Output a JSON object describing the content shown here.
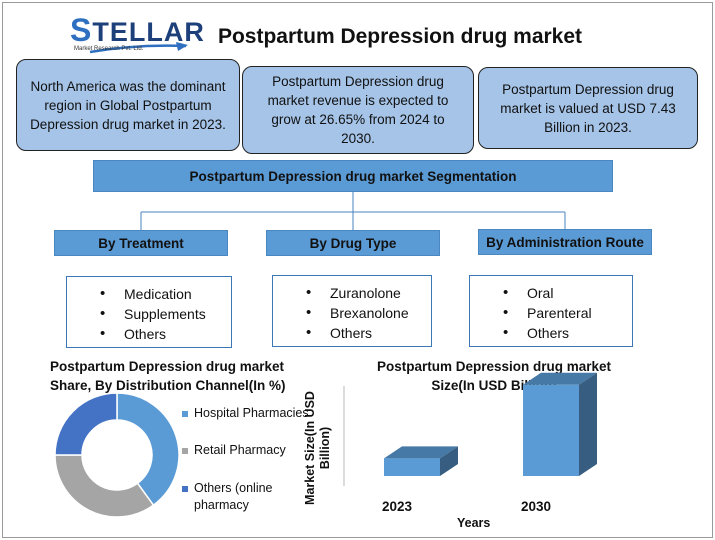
{
  "brand": {
    "logo_text": "STELLAR",
    "logo_subtitle": "Market Research Pvt. Ltd."
  },
  "title": "Postpartum Depression drug market",
  "facts": [
    "North America was the dominant region in Global Postpartum Depression drug market in 2023.",
    "Postpartum Depression drug market revenue is expected to grow at 26.65% from 2024 to 2030.",
    "Postpartum Depression drug market is valued at USD 7.43 Billion in 2023."
  ],
  "segmentation": {
    "title": "Postpartum Depression drug market Segmentation",
    "categories": [
      {
        "label": "By Treatment",
        "items": [
          "Medication",
          "Supplements",
          "Others"
        ]
      },
      {
        "label": "By Drug Type",
        "items": [
          "Zuranolone",
          "Brexanolone",
          "Others"
        ]
      },
      {
        "label": "By Administration Route",
        "items": [
          "Oral",
          "Parenteral",
          "Others"
        ]
      }
    ]
  },
  "chart_data": [
    {
      "type": "pie",
      "title": "Postpartum Depression drug market Share, By Distribution Channel(In %)",
      "donut": true,
      "legend_position": "right",
      "categories": [
        "Hospital Pharmacies",
        "Retail Pharmacy",
        "Others (online pharmacy"
      ],
      "values": [
        40,
        35,
        25
      ],
      "colors": [
        "#5b9bd5",
        "#a5a5a5",
        "#4472c4"
      ]
    },
    {
      "type": "bar",
      "style": "3d",
      "title": "Postpartum Depression drug market Size(In USD Billion)",
      "xlabel": "Years",
      "ylabel": "Market Size(In USD Billion)",
      "categories": [
        "2023",
        "2030"
      ],
      "values": [
        7.43,
        38.4
      ],
      "ylim": [
        0,
        40
      ],
      "grid": false,
      "color": "#5b9bd5"
    }
  ]
}
